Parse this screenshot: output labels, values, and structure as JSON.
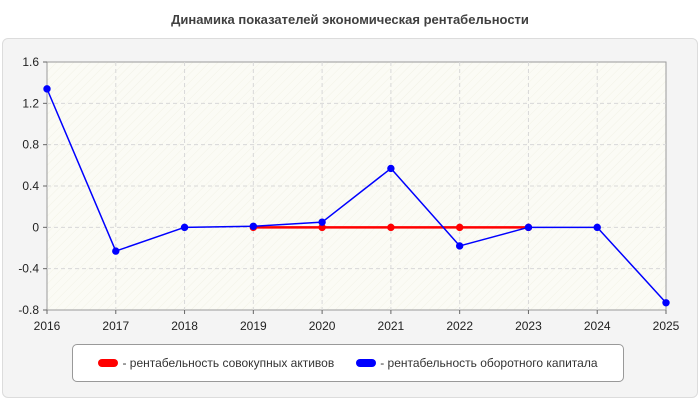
{
  "chart_data": {
    "type": "line",
    "title": "Динамика показателей экономическая рентабельности",
    "x": [
      "2016",
      "2017",
      "2018",
      "2019",
      "2020",
      "2021",
      "2022",
      "2023",
      "2024",
      "2025"
    ],
    "y_ticks": [
      "1.6",
      "1.2",
      "0.8",
      "0.4",
      "0",
      "-0.4",
      "-0.8"
    ],
    "ylim": [
      -0.8,
      1.6
    ],
    "grid": true,
    "legend_position": "bottom",
    "series": [
      {
        "name": "- рентабельность совокупных активов",
        "color": "#ff0000",
        "x": [
          "2019",
          "2020",
          "2021",
          "2022",
          "2023"
        ],
        "values": [
          0,
          0,
          0,
          0,
          0
        ]
      },
      {
        "name": "- рентабельность оборотного капитала",
        "color": "#0000ff",
        "x": [
          "2016",
          "2017",
          "2018",
          "2019",
          "2020",
          "2021",
          "2022",
          "2023",
          "2024",
          "2025"
        ],
        "values": [
          1.34,
          -0.23,
          0.0,
          0.01,
          0.05,
          0.57,
          -0.18,
          0.0,
          0.0,
          -0.73
        ]
      }
    ]
  }
}
